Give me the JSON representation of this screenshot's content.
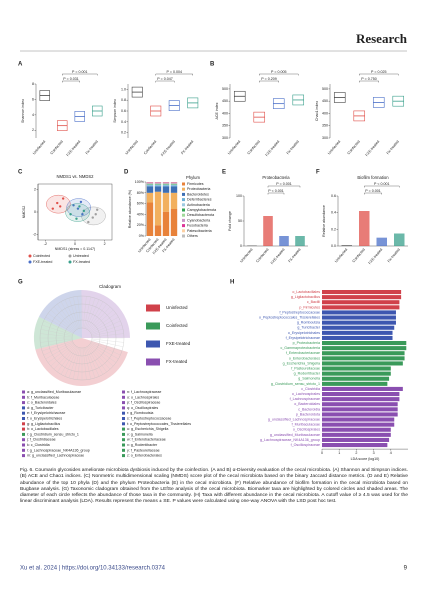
{
  "header": {
    "title": "Research"
  },
  "panels": {
    "A": {
      "label": "A",
      "plots": [
        {
          "ylabel": "Shannon index",
          "categories": [
            "Uninfected",
            "Coinfected",
            "FXE-treated",
            "FX-treated"
          ],
          "values": [
            6.5,
            2.6,
            3.8,
            4.5
          ],
          "colors": [
            "#444444",
            "#e0504a",
            "#4a6fc8",
            "#3aa08c"
          ],
          "ylim": [
            1,
            8
          ],
          "yticks": [
            2,
            4,
            6,
            8
          ],
          "pvalues": [
            "P = 0.001",
            "P = 0.031"
          ]
        },
        {
          "ylabel": "Simpson index",
          "categories": [
            "Uninfected",
            "Coinfected",
            "FXE-treated",
            "FX-treated"
          ],
          "values": [
            0.95,
            0.6,
            0.7,
            0.75
          ],
          "colors": [
            "#444444",
            "#e0504a",
            "#4a6fc8",
            "#3aa08c"
          ],
          "ylim": [
            0.1,
            1.1
          ],
          "yticks": [
            0.2,
            0.4,
            0.6,
            0.8,
            {
              "value": 1,
              "label": "1.0"
            }
          ],
          "pvalues": [
            "P = 0.004",
            "P = 0.047"
          ]
        }
      ]
    },
    "B": {
      "label": "B",
      "plots": [
        {
          "ylabel": "ACE index",
          "categories": [
            "Uninfected",
            "Coinfected",
            "FXE-treated",
            "FX-treated"
          ],
          "values": [
            470,
            385,
            440,
            455
          ],
          "colors": [
            "#444444",
            "#e0504a",
            "#4a6fc8",
            "#3aa08c"
          ],
          "ylim": [
            300,
            520
          ],
          "yticks": [
            300,
            350,
            400,
            450,
            500
          ],
          "pvalues": [
            "P = 0.005",
            "P = 0.209"
          ]
        },
        {
          "ylabel": "Chao1 index",
          "categories": [
            "Uninfected",
            "Coinfected",
            "FXE-treated",
            "FX-treated"
          ],
          "values": [
            465,
            390,
            445,
            450
          ],
          "colors": [
            "#444444",
            "#e0504a",
            "#4a6fc8",
            "#3aa08c"
          ],
          "ylim": [
            300,
            520
          ],
          "yticks": [
            300,
            350,
            400,
            450,
            500
          ],
          "pvalues": [
            "P = 0.025",
            "P = 0.750"
          ]
        }
      ]
    },
    "C": {
      "label": "C",
      "title": "NMDS1 vs. NMDS2",
      "xlabel": "NMDS1 (stress = 0.1147)",
      "ylabel": "NMDS2",
      "xlim": [
        -2.5,
        2.5
      ],
      "ylim": [
        -2.5,
        2.5
      ],
      "xticks": [
        -2,
        0,
        2
      ],
      "yticks": [
        -2,
        0,
        2
      ],
      "series": [
        {
          "name": "Coinfected",
          "color": "#e0504a",
          "x": [
            -1.2,
            -0.8,
            -1.5,
            -1.0
          ],
          "y": [
            0.8,
            1.2,
            0.3,
            0.5
          ]
        },
        {
          "name": "Untreated",
          "color": "#a0a0a0",
          "x": [
            1.2,
            1.5,
            0.9,
            1.4
          ],
          "y": [
            -0.5,
            0.2,
            -0.9,
            -0.2
          ]
        },
        {
          "name": "FXE-treated",
          "color": "#4a6fc8",
          "x": [
            0.2,
            0.5,
            -0.1,
            0.4
          ],
          "y": [
            0.3,
            -0.2,
            0.6,
            0.9
          ]
        },
        {
          "name": "FX-treated",
          "color": "#3aa08c",
          "x": [
            0.1,
            0.6,
            -0.3,
            0.3
          ],
          "y": [
            -0.6,
            0.1,
            -0.2,
            0.5
          ]
        }
      ]
    },
    "D": {
      "label": "D",
      "title": "Phylum",
      "ylabel": "Relative abundance (%)",
      "categories": [
        "Uninfected",
        "Coinfected",
        "FXE-treated",
        "FX-treated"
      ],
      "ylim": [
        0,
        100
      ],
      "yticks": [
        {
          "value": 0,
          "label": "0%"
        },
        {
          "value": 20,
          "label": "20%"
        },
        {
          "value": 40,
          "label": "40%"
        },
        {
          "value": 60,
          "label": "60%"
        },
        {
          "value": 80,
          "label": "80%"
        },
        {
          "value": 100,
          "label": "100%"
        }
      ],
      "series": [
        {
          "name": "Firmicutes",
          "color": "#e8823a",
          "values": [
            62,
            20,
            45,
            50
          ]
        },
        {
          "name": "Proteobacteria",
          "color": "#f2b05e",
          "values": [
            18,
            62,
            35,
            30
          ]
        },
        {
          "name": "Bacteroidetes",
          "color": "#3d6fb5",
          "values": [
            12,
            10,
            12,
            12
          ]
        },
        {
          "name": "Deferribacteres",
          "color": "#6baed6",
          "values": [
            2,
            2,
            2,
            2
          ]
        },
        {
          "name": "Actinobacteria",
          "color": "#9ecae1",
          "values": [
            1,
            1,
            1,
            1
          ]
        },
        {
          "name": "Campylobacterota",
          "color": "#31a354",
          "values": [
            1,
            1,
            1,
            1
          ]
        },
        {
          "name": "Desulfobacterota",
          "color": "#a1d99b",
          "values": [
            1,
            1,
            1,
            1
          ]
        },
        {
          "name": "Cyanobacteria",
          "color": "#c994c7",
          "values": [
            1,
            1,
            1,
            1
          ]
        },
        {
          "name": "Fusobacteria",
          "color": "#dd3497",
          "values": [
            1,
            1,
            1,
            1
          ]
        },
        {
          "name": "Patescibacteria",
          "color": "#fdd0a2",
          "values": [
            0.5,
            0.5,
            0.5,
            0.5
          ]
        },
        {
          "name": "Others",
          "color": "#bdbdbd",
          "values": [
            0.5,
            0.5,
            0.5,
            0.5
          ]
        }
      ]
    },
    "E": {
      "label": "E",
      "title": "Proteobacteria",
      "ylabel": "Fold change",
      "categories": [
        "Uninfected",
        "Coinfected",
        "FXE-treated",
        "FX-treated"
      ],
      "values": [
        1,
        60,
        20,
        20
      ],
      "colors": [
        "#444444",
        "#e0504a",
        "#4a6fc8",
        "#3aa08c"
      ],
      "ylim": [
        0,
        100
      ],
      "yticks": [
        0,
        50,
        100
      ],
      "pvalues": [
        "P = 0.001",
        "P < 0.001"
      ]
    },
    "F": {
      "label": "F",
      "title": "Biofilm formation",
      "ylabel": "Relative abundance",
      "categories": [
        "Uninfected",
        "Coinfected",
        "FXE-treated",
        "FX-treated"
      ],
      "values": [
        0.01,
        0.42,
        0.1,
        0.15
      ],
      "colors": [
        "#444444",
        "#e0504a",
        "#4a6fc8",
        "#3aa08c"
      ],
      "ylim": [
        0,
        0.6
      ],
      "yticks": [
        {
          "value": 0,
          "label": "0.0"
        },
        0.2,
        0.4,
        0.6
      ],
      "pvalues": [
        "P < 0.001",
        "P = 0.001"
      ]
    },
    "G": {
      "label": "G",
      "title": "Cladogram",
      "groups": [
        {
          "name": "Uninfected",
          "color": "#d0414a"
        },
        {
          "name": "Coinfected",
          "color": "#3a9a5a"
        },
        {
          "name": "FXE-treated",
          "color": "#3d57b0"
        },
        {
          "name": "FX-treated",
          "color": "#8a4fb0"
        }
      ],
      "keys": [
        {
          "text": "a: g_unclassified_Muribaculaceae",
          "group": 3
        },
        {
          "text": "b: f_Muribaculaceae",
          "group": 3
        },
        {
          "text": "c: o_Bacteroidales",
          "group": 3
        },
        {
          "text": "d: g_Turicibacter",
          "group": 2
        },
        {
          "text": "e: f_Erysipelotrichaceae",
          "group": 2
        },
        {
          "text": "f: o_Erysipelotrichales",
          "group": 2
        },
        {
          "text": "g: g_Ligilactobacillus",
          "group": 0
        },
        {
          "text": "h: o_Lactobacillales",
          "group": 0
        },
        {
          "text": "i: g_Clostridium_sensu_stricto_1",
          "group": 1
        },
        {
          "text": "j: f_Clostridiaceae",
          "group": 3
        },
        {
          "text": "k: c_Clostridia",
          "group": 3
        },
        {
          "text": "l: g_Lachnospiraceae_NK4A136_group",
          "group": 3
        },
        {
          "text": "m: g_unclassified_Lachnospiraceae",
          "group": 3
        },
        {
          "text": "n: f_Lachnospiraceae",
          "group": 3
        },
        {
          "text": "o: o_Lachnospirales",
          "group": 3
        },
        {
          "text": "p: f_Oscillospiraceae",
          "group": 3
        },
        {
          "text": "q: o_Oscillospirales",
          "group": 3
        },
        {
          "text": "r: g_Romboutsia",
          "group": 2
        },
        {
          "text": "s: f_Peptostreptococcaceae",
          "group": 2
        },
        {
          "text": "t: o_Peptostreptococcales_Tissierellales",
          "group": 2
        },
        {
          "text": "u: g_Escherichia_Shigella",
          "group": 1
        },
        {
          "text": "v: g_Salmonella",
          "group": 1
        },
        {
          "text": "w: f_Enterobacteriaceae",
          "group": 1
        },
        {
          "text": "x: g_Rodentibacter",
          "group": 1
        },
        {
          "text": "y: f_Pasteurellaceae",
          "group": 1
        },
        {
          "text": "z: o_Enterobacterales",
          "group": 1
        }
      ]
    },
    "H": {
      "label": "H",
      "xlabel": "LDA score (log10)",
      "xlim": [
        0,
        5
      ],
      "xticks": [
        0,
        1,
        2,
        3,
        4
      ],
      "items": [
        {
          "label": "o_Lactobacillales",
          "group": 0,
          "value": 4.6
        },
        {
          "label": "g_Ligilactobacillus",
          "group": 0,
          "value": 4.6
        },
        {
          "label": "c_Bacilli",
          "group": 0,
          "value": 4.5
        },
        {
          "label": "p_Firmicutes",
          "group": 0,
          "value": 4.5
        },
        {
          "label": "f_Peptostreptococcaceae",
          "group": 2,
          "value": 4.3
        },
        {
          "label": "o_Peptostreptococcales_Tissierellales",
          "group": 2,
          "value": 4.3
        },
        {
          "label": "g_Romboutsia",
          "group": 2,
          "value": 4.3
        },
        {
          "label": "g_Turicibacter",
          "group": 2,
          "value": 4.2
        },
        {
          "label": "o_Erysipelotrichales",
          "group": 2,
          "value": 4.1
        },
        {
          "label": "f_Erysipelotrichaceae",
          "group": 2,
          "value": 4.1
        },
        {
          "label": "p_Proteobacteria",
          "group": 1,
          "value": 4.9
        },
        {
          "label": "c_Gammaproteobacteria",
          "group": 1,
          "value": 4.9
        },
        {
          "label": "f_Enterobacteriaceae",
          "group": 1,
          "value": 4.8
        },
        {
          "label": "o_Enterobacterales",
          "group": 1,
          "value": 4.8
        },
        {
          "label": "g_Escherichia_Shigella",
          "group": 1,
          "value": 4.7
        },
        {
          "label": "f_Pasteurellaceae",
          "group": 1,
          "value": 4.0
        },
        {
          "label": "g_Rodentibacter",
          "group": 1,
          "value": 4.0
        },
        {
          "label": "g_Salmonella",
          "group": 1,
          "value": 3.9
        },
        {
          "label": "g_Clostridium_sensu_stricto_1",
          "group": 1,
          "value": 3.8
        },
        {
          "label": "c_Clostridia",
          "group": 3,
          "value": 4.7
        },
        {
          "label": "o_Lachnospirales",
          "group": 3,
          "value": 4.5
        },
        {
          "label": "f_Lachnospiraceae",
          "group": 3,
          "value": 4.5
        },
        {
          "label": "o_Bacteroidales",
          "group": 3,
          "value": 4.4
        },
        {
          "label": "c_Bacteroidia",
          "group": 3,
          "value": 4.4
        },
        {
          "label": "p_Bacteroidota",
          "group": 3,
          "value": 4.4
        },
        {
          "label": "g_unclassified_Lachnospiraceae",
          "group": 3,
          "value": 4.2
        },
        {
          "label": "f_Muribaculaceae",
          "group": 3,
          "value": 4.2
        },
        {
          "label": "o_Oscillospirales",
          "group": 3,
          "value": 4.0
        },
        {
          "label": "g_unclassified_Muribaculaceae",
          "group": 3,
          "value": 4.0
        },
        {
          "label": "g_Lachnospiraceae_NK4A136_group",
          "group": 3,
          "value": 3.9
        },
        {
          "label": "f_Oscillospiraceae",
          "group": 3,
          "value": 3.8
        }
      ]
    }
  },
  "caption": "Fig. 6. Coumarin glycosides ameliorate microbiota dysbiosis induced by the coinfection. (A and B) α-Diversity evaluation of the cecal microbiota. (A) Shannon and Simpson indices. (B) ACE and Chao1 indices. (C) Nonmetric multidimensional scaling (NMDS) score plot of the cecal microbiota based on the binary Jaccard distance metrics. (D and E) Relative abundance of the top 10 phyla (D) and the phylum Proteobacteria (E) in the cecal microbiota. (F) Relative abundance of biofilm formation in the cecal microbiota based on Bugbase analysis. (G) Taxonomic cladogram obtained from the LEfSe analysis of the cecal microbiota. Biomarker taxa are highlighted by colored circles and shaded areas. The diameter of each circle reflects the abundance of those taxa in the community. (H) Taxa with different abundance in the cecal microbiota. A cutoff value of ≥ 4.5 was used for the linear discriminant analysis (LDA). Results represent the means ± SE. P values were calculated using one-way ANOVA with the LSD post hoc test.",
  "footer": {
    "citation": "Xu et al. 2024 | https://doi.org/10.34133/research.0374",
    "page": "9"
  }
}
